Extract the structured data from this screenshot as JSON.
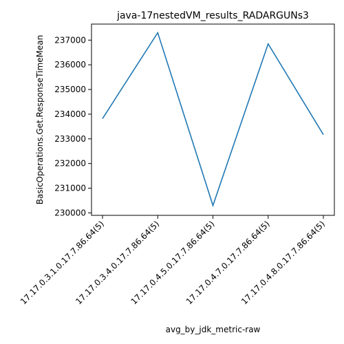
{
  "chart_data": {
    "type": "line",
    "title": "java-17nestedVM_results_RADARGUNs3",
    "xlabel": "avg_by_jdk_metric-raw",
    "ylabel": "BasicOperations.Get.ResponseTimeMean",
    "categories": [
      "17.17.0.3.1.0.17.7.86.64(5)",
      "17.17.0.3.4.0.17.7.86.64(5)",
      "17.17.0.4.5.0.17.7.86.64(5)",
      "17.17.0.4.7.0.17.7.86.64(5)",
      "17.17.0.4.8.0.17.7.86.64(5)"
    ],
    "series": [
      {
        "values": [
          233820,
          237300,
          230300,
          236850,
          233170
        ],
        "color": "#1f77b4"
      }
    ],
    "yticks": [
      "230000",
      "231000",
      "232000",
      "233000",
      "234000",
      "235000",
      "236000",
      "237000"
    ],
    "ylim": [
      229900,
      237650
    ],
    "grid": false,
    "legend": "none"
  }
}
